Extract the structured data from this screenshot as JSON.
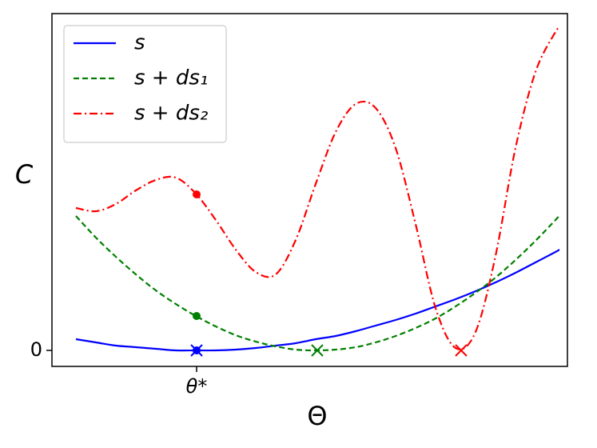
{
  "chart_data": {
    "type": "line",
    "xlabel": "Θ",
    "ylabel": "C",
    "x": [
      0.3,
      0.55,
      0.8,
      1.05,
      1.3,
      1.55,
      1.8,
      2.05,
      2.3,
      2.55,
      2.8,
      3.05,
      3.3,
      3.55,
      3.8,
      4.05,
      4.3,
      4.55,
      4.8,
      5.05,
      5.3,
      5.55,
      5.8,
      6.05,
      6.3,
      6.35
    ],
    "series": [
      {
        "name": "s",
        "color": "#0000ff",
        "dash": "solid",
        "values": [
          0.14,
          0.1,
          0.06,
          0.04,
          0.02,
          0.0,
          0.0,
          0.0,
          0.01,
          0.03,
          0.06,
          0.09,
          0.14,
          0.18,
          0.24,
          0.31,
          0.38,
          0.46,
          0.55,
          0.64,
          0.74,
          0.85,
          0.97,
          1.1,
          1.23,
          1.26
        ]
      },
      {
        "name": "s + ds₁",
        "color": "#008000",
        "dash": "dashed",
        "values": [
          1.68,
          1.41,
          1.17,
          0.95,
          0.75,
          0.58,
          0.43,
          0.3,
          0.19,
          0.11,
          0.05,
          0.01,
          0.0,
          0.01,
          0.04,
          0.1,
          0.18,
          0.28,
          0.4,
          0.55,
          0.72,
          0.91,
          1.13,
          1.37,
          1.63,
          1.69
        ]
      },
      {
        "name": "s + ds₂",
        "color": "#ff0000",
        "dash": "dashdot",
        "values": [
          1.78,
          1.74,
          1.83,
          2.0,
          2.13,
          2.16,
          1.96,
          1.63,
          1.26,
          0.98,
          0.95,
          1.38,
          2.08,
          2.73,
          3.08,
          3.03,
          2.53,
          1.58,
          0.53,
          0.03,
          0.23,
          1.18,
          2.53,
          3.48,
          3.98,
          4.01
        ]
      }
    ],
    "points": [
      {
        "x": 1.81,
        "y": 0.43,
        "marker": "dot",
        "color": "#008000"
      },
      {
        "x": 1.81,
        "y": 1.95,
        "marker": "dot",
        "color": "#ff0000"
      },
      {
        "x": 1.81,
        "y": 0,
        "marker": "dot",
        "color": "#0000ff"
      },
      {
        "x": 1.81,
        "y": 0,
        "marker": "x",
        "color": "#0000ff"
      },
      {
        "x": 3.32,
        "y": 0,
        "marker": "x",
        "color": "#008000"
      },
      {
        "x": 5.12,
        "y": 0,
        "marker": "x",
        "color": "#ff0000"
      }
    ],
    "xlim": [
      0,
      6.45
    ],
    "ylim": [
      -0.2,
      4.21
    ],
    "xticks": [
      {
        "value": 1.81,
        "label": "θ*"
      }
    ],
    "yticks": [
      0
    ],
    "legend": "upper left"
  }
}
